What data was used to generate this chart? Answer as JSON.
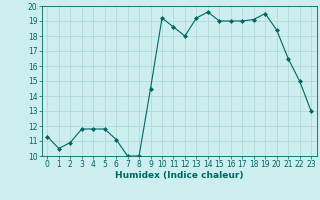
{
  "x": [
    0,
    1,
    2,
    3,
    4,
    5,
    6,
    7,
    8,
    9,
    10,
    11,
    12,
    13,
    14,
    15,
    16,
    17,
    18,
    19,
    20,
    21,
    22,
    23
  ],
  "y": [
    11.3,
    10.5,
    10.9,
    11.8,
    11.8,
    11.8,
    11.1,
    10.0,
    10.0,
    14.5,
    19.2,
    18.6,
    18.0,
    19.2,
    19.6,
    19.0,
    19.0,
    19.0,
    19.1,
    19.5,
    18.4,
    16.5,
    15.0,
    13.0
  ],
  "line_color": "#006666",
  "marker": "D",
  "marker_size": 2.0,
  "bg_color": "#cceeee",
  "grid_color": "#b0d4d4",
  "xlabel": "Humidex (Indice chaleur)",
  "xlim": [
    -0.5,
    23.5
  ],
  "ylim": [
    10,
    20
  ],
  "yticks": [
    10,
    11,
    12,
    13,
    14,
    15,
    16,
    17,
    18,
    19,
    20
  ],
  "xticks": [
    0,
    1,
    2,
    3,
    4,
    5,
    6,
    7,
    8,
    9,
    10,
    11,
    12,
    13,
    14,
    15,
    16,
    17,
    18,
    19,
    20,
    21,
    22,
    23
  ],
  "tick_fontsize": 5.5,
  "xlabel_fontsize": 6.5
}
